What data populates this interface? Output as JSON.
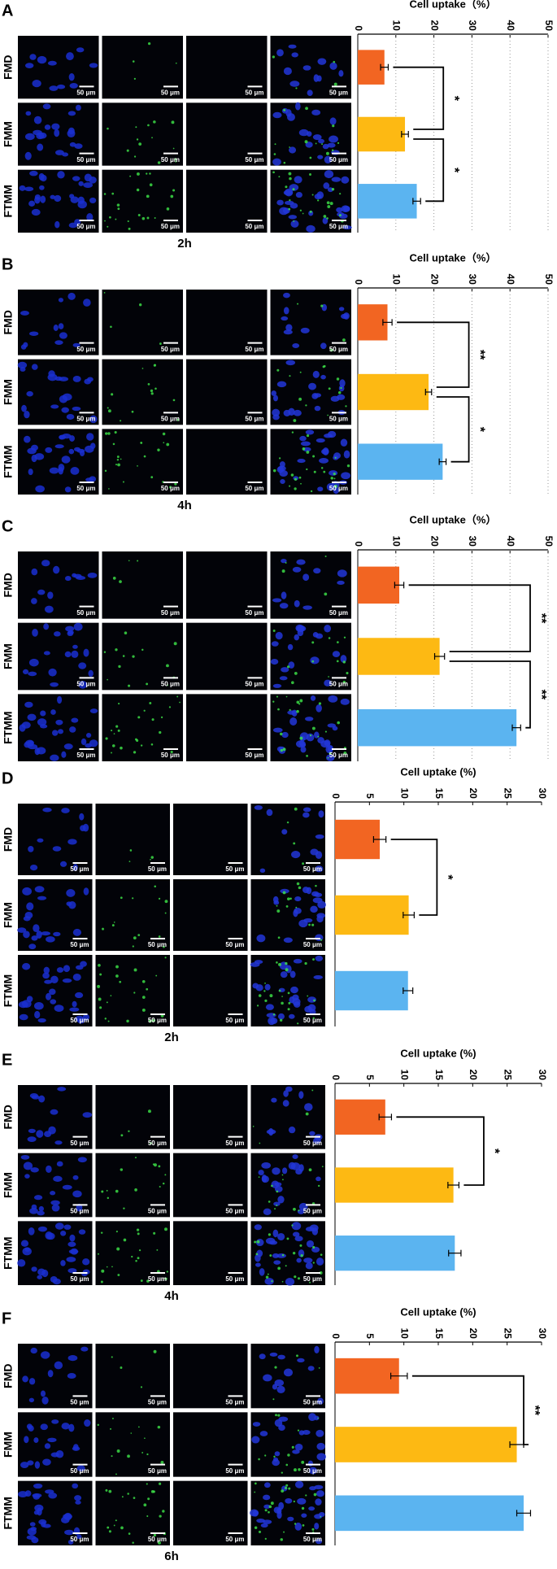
{
  "chart_data": [
    {
      "type": "bar",
      "orientation": "horizontal",
      "panel": "A",
      "time": "2h",
      "xlabel": "Cell uptake（%）",
      "categories": [
        "FMD",
        "FMM",
        "FTMM"
      ],
      "values": [
        7,
        12.4,
        15.5
      ],
      "errors": [
        1,
        0.9,
        1
      ],
      "colors": [
        "#f26522",
        "#fdb913",
        "#5bb4f0"
      ],
      "xlim": [
        0,
        50
      ],
      "xticks": [
        0,
        10,
        20,
        30,
        40,
        50
      ],
      "grid": true,
      "scale_bar": "50 μm",
      "annotations": [
        {
          "pairs": [
            0,
            1
          ],
          "label": "*"
        },
        {
          "pairs": [
            1,
            2
          ],
          "label": "*"
        }
      ]
    },
    {
      "type": "bar",
      "orientation": "horizontal",
      "panel": "B",
      "time": "4h",
      "xlabel": "Cell uptake（%）",
      "categories": [
        "FMD",
        "FMM",
        "FTMM"
      ],
      "values": [
        7.8,
        18.6,
        22.3
      ],
      "errors": [
        1.2,
        0.8,
        0.9
      ],
      "colors": [
        "#f26522",
        "#fdb913",
        "#5bb4f0"
      ],
      "xlim": [
        0,
        50
      ],
      "xticks": [
        0,
        10,
        20,
        30,
        40,
        50
      ],
      "grid": true,
      "scale_bar": "50 μm",
      "annotations": [
        {
          "pairs": [
            0,
            1
          ],
          "label": "**"
        },
        {
          "pairs": [
            1,
            2
          ],
          "label": "*"
        }
      ]
    },
    {
      "type": "bar",
      "orientation": "horizontal",
      "panel": "C",
      "xlabel": "Cell uptake（%）",
      "categories": [
        "FMD",
        "FMM",
        "FTMM"
      ],
      "values": [
        10.9,
        21.5,
        41.7
      ],
      "errors": [
        1.2,
        1.3,
        1.1
      ],
      "colors": [
        "#f26522",
        "#fdb913",
        "#5bb4f0"
      ],
      "xlim": [
        0,
        50
      ],
      "xticks": [
        0,
        10,
        20,
        30,
        40,
        50
      ],
      "grid": true,
      "scale_bar": "50 μm",
      "annotations": [
        {
          "pairs": [
            0,
            1
          ],
          "label": "**"
        },
        {
          "pairs": [
            1,
            2
          ],
          "label": "**"
        }
      ]
    },
    {
      "type": "bar",
      "orientation": "horizontal",
      "panel": "D",
      "time": "2h",
      "xlabel": "Cell uptake (%)",
      "categories": [
        "FMD",
        "FMM",
        "FTMM"
      ],
      "values": [
        6.5,
        10.7,
        10.6
      ],
      "errors": [
        0.9,
        0.8,
        0.7
      ],
      "colors": [
        "#f26522",
        "#fdb913",
        "#5bb4f0"
      ],
      "xlim": [
        0,
        30
      ],
      "xticks": [
        0,
        5,
        10,
        15,
        20,
        25,
        30
      ],
      "grid": false,
      "scale_bar": "50 μm",
      "annotations": [
        {
          "pairs": [
            0,
            1
          ],
          "label": "*"
        }
      ]
    },
    {
      "type": "bar",
      "orientation": "horizontal",
      "panel": "E",
      "time": "4h",
      "xlabel": "Cell uptake (%)",
      "categories": [
        "FMD",
        "FMM",
        "FTMM"
      ],
      "values": [
        7.3,
        17.2,
        17.4
      ],
      "errors": [
        0.9,
        0.8,
        0.9
      ],
      "colors": [
        "#f26522",
        "#fdb913",
        "#5bb4f0"
      ],
      "xlim": [
        0,
        30
      ],
      "xticks": [
        0,
        5,
        10,
        15,
        20,
        25,
        30
      ],
      "grid": false,
      "scale_bar": "50 μm",
      "annotations": [
        {
          "pairs": [
            0,
            1
          ],
          "label": "*"
        }
      ]
    },
    {
      "type": "bar",
      "orientation": "horizontal",
      "panel": "F",
      "time": "6h",
      "xlabel": "Cell uptake (%)",
      "categories": [
        "FMD",
        "FMM",
        "FTMM"
      ],
      "values": [
        9.3,
        26.4,
        27.4
      ],
      "errors": [
        1.2,
        1,
        1
      ],
      "colors": [
        "#f26522",
        "#fdb913",
        "#5bb4f0"
      ],
      "xlim": [
        0,
        30
      ],
      "xticks": [
        0,
        5,
        10,
        15,
        20,
        25,
        30
      ],
      "grid": false,
      "scale_bar": "50 μm",
      "annotations": [
        {
          "pairs": [
            0,
            1
          ],
          "label": "**"
        }
      ]
    }
  ]
}
